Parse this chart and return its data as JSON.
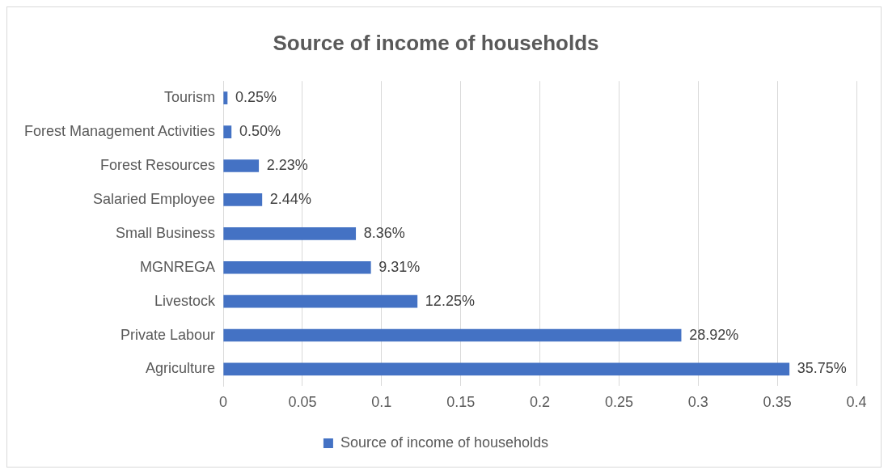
{
  "chart_data": {
    "type": "bar",
    "orientation": "horizontal",
    "title": "Source of income of households",
    "categories": [
      "Tourism",
      "Forest Management Activities",
      "Forest Resources",
      "Salaried Employee",
      "Small Business",
      "MGNREGA",
      "Livestock",
      "Private Labour",
      "Agriculture"
    ],
    "series": [
      {
        "name": "Source of income of households",
        "color": "#4472c4",
        "values": [
          0.0025,
          0.005,
          0.0223,
          0.0244,
          0.0836,
          0.0931,
          0.1225,
          0.2892,
          0.3575
        ],
        "value_labels": [
          "0.25%",
          "0.50%",
          "2.23%",
          "2.44%",
          "8.36%",
          "9.31%",
          "12.25%",
          "28.92%",
          "35.75%"
        ]
      }
    ],
    "xlim": [
      0,
      0.4
    ],
    "xticks": [
      0,
      0.05,
      0.1,
      0.15,
      0.2,
      0.25,
      0.3,
      0.35,
      0.4
    ],
    "grid": "x",
    "legend": "bottom"
  }
}
